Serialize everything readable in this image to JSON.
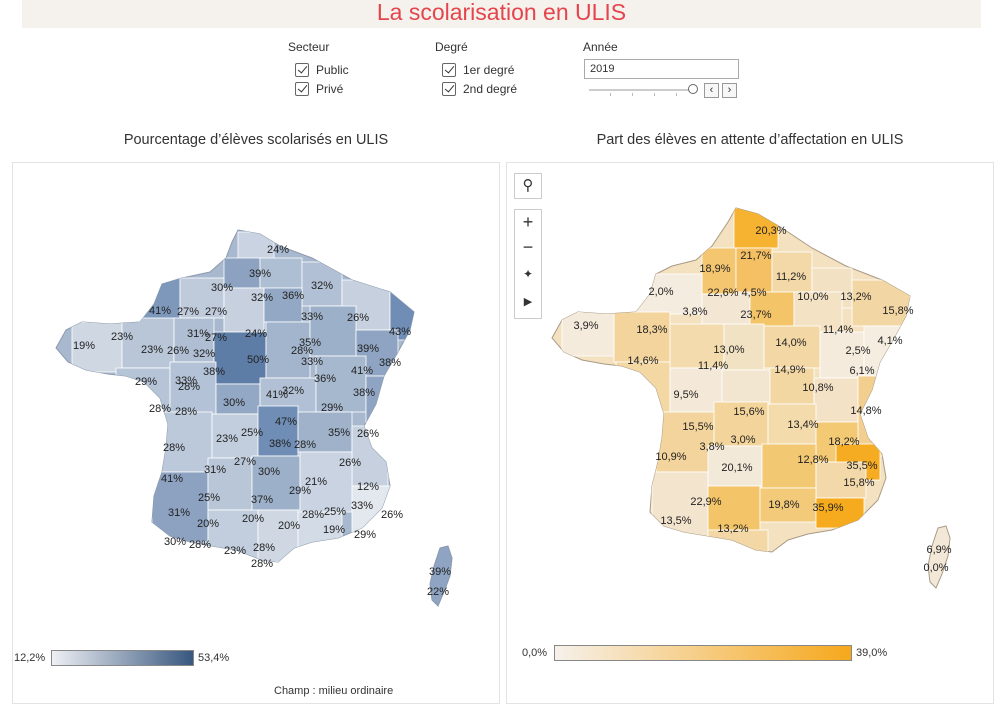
{
  "header": {
    "title": "La scolarisation en ULIS"
  },
  "filters": {
    "secteur": {
      "title": "Secteur",
      "options": [
        "Public",
        "Privé"
      ]
    },
    "degre": {
      "title": "Degré",
      "options": [
        "1er degré",
        "2nd degré"
      ]
    },
    "annee": {
      "title": "Année",
      "value": "2019"
    }
  },
  "left_panel": {
    "title": "Pourcentage d’élèves scolarisés en ULIS",
    "legend_min": "12,2%",
    "legend_max": "53,4%",
    "footnote": "Champ : milieu ordinaire",
    "colors": {
      "low": "#eef0f4",
      "high": "#38577f"
    },
    "labels": [
      "24%",
      "39%",
      "30%",
      "32%",
      "36%",
      "32%",
      "41%",
      "27%",
      "27%",
      "33%",
      "26%",
      "43%",
      "23%",
      "31%",
      "24%",
      "27%",
      "35%",
      "39%",
      "19%",
      "23%",
      "26%",
      "32%",
      "50%",
      "28%",
      "41%",
      "38%",
      "29%",
      "33%",
      "38%",
      "33%",
      "36%",
      "28%",
      "41%",
      "30%",
      "32%",
      "38%",
      "28%",
      "29%",
      "28%",
      "47%",
      "25%",
      "23%",
      "35%",
      "26%",
      "28%",
      "38%",
      "28%",
      "27%",
      "26%",
      "31%",
      "30%",
      "21%",
      "12%",
      "41%",
      "25%",
      "29%",
      "37%",
      "33%",
      "31%",
      "20%",
      "20%",
      "28%",
      "20%",
      "25%",
      "26%",
      "19%",
      "29%",
      "30%",
      "28%",
      "23%",
      "28%",
      "28%",
      "39%",
      "22%"
    ]
  },
  "right_panel": {
    "title": "Part des élèves en attente d’affectation en ULIS",
    "legend_min": "0,0%",
    "legend_max": "39,0%",
    "colors": {
      "low": "#f6f1ea",
      "high": "#f6a81c"
    },
    "labels": [
      "20,3%",
      "21,7%",
      "18,9%",
      "11,2%",
      "2,0%",
      "22,6%",
      "4,5%",
      "10,0%",
      "13,2%",
      "15,8%",
      "3,8%",
      "23,7%",
      "11,4%",
      "3,9%",
      "18,3%",
      "13,0%",
      "14,0%",
      "2,5%",
      "4,1%",
      "14,6%",
      "11,4%",
      "14,9%",
      "6,1%",
      "9,5%",
      "10,8%",
      "15,6%",
      "14,8%",
      "15,5%",
      "13,4%",
      "3,0%",
      "18,2%",
      "3,8%",
      "10,9%",
      "20,1%",
      "12,8%",
      "35,5%",
      "15,8%",
      "22,9%",
      "19,8%",
      "35,9%",
      "13,5%",
      "13,2%",
      "6,9%",
      "0,0%"
    ]
  }
}
